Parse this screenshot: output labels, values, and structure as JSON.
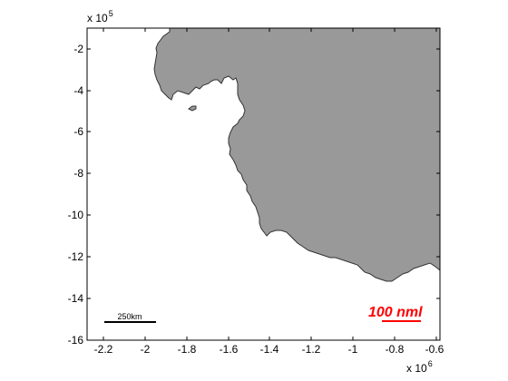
{
  "map": {
    "x_axis": {
      "ticks": [
        "-2.2",
        "-2",
        "-1.8",
        "-1.6",
        "-1.4",
        "-1.2",
        "-1",
        "-0.8",
        "-0.6"
      ],
      "multiplier_base": "x 10",
      "multiplier_exponent": "6"
    },
    "y_axis": {
      "ticks": [
        "-2",
        "-4",
        "-6",
        "-8",
        "-10",
        "-12",
        "-14",
        "-16"
      ],
      "multiplier_base": "x 10",
      "multiplier_exponent": "5"
    },
    "scale_bar_km": {
      "label": "250km"
    },
    "scale_bar_nm": {
      "label": "100 nml",
      "color": "#ff0000"
    },
    "colors": {
      "land": "#999999",
      "coastline": "#333333",
      "sea": "#ffffff",
      "frame": "#000000"
    }
  }
}
